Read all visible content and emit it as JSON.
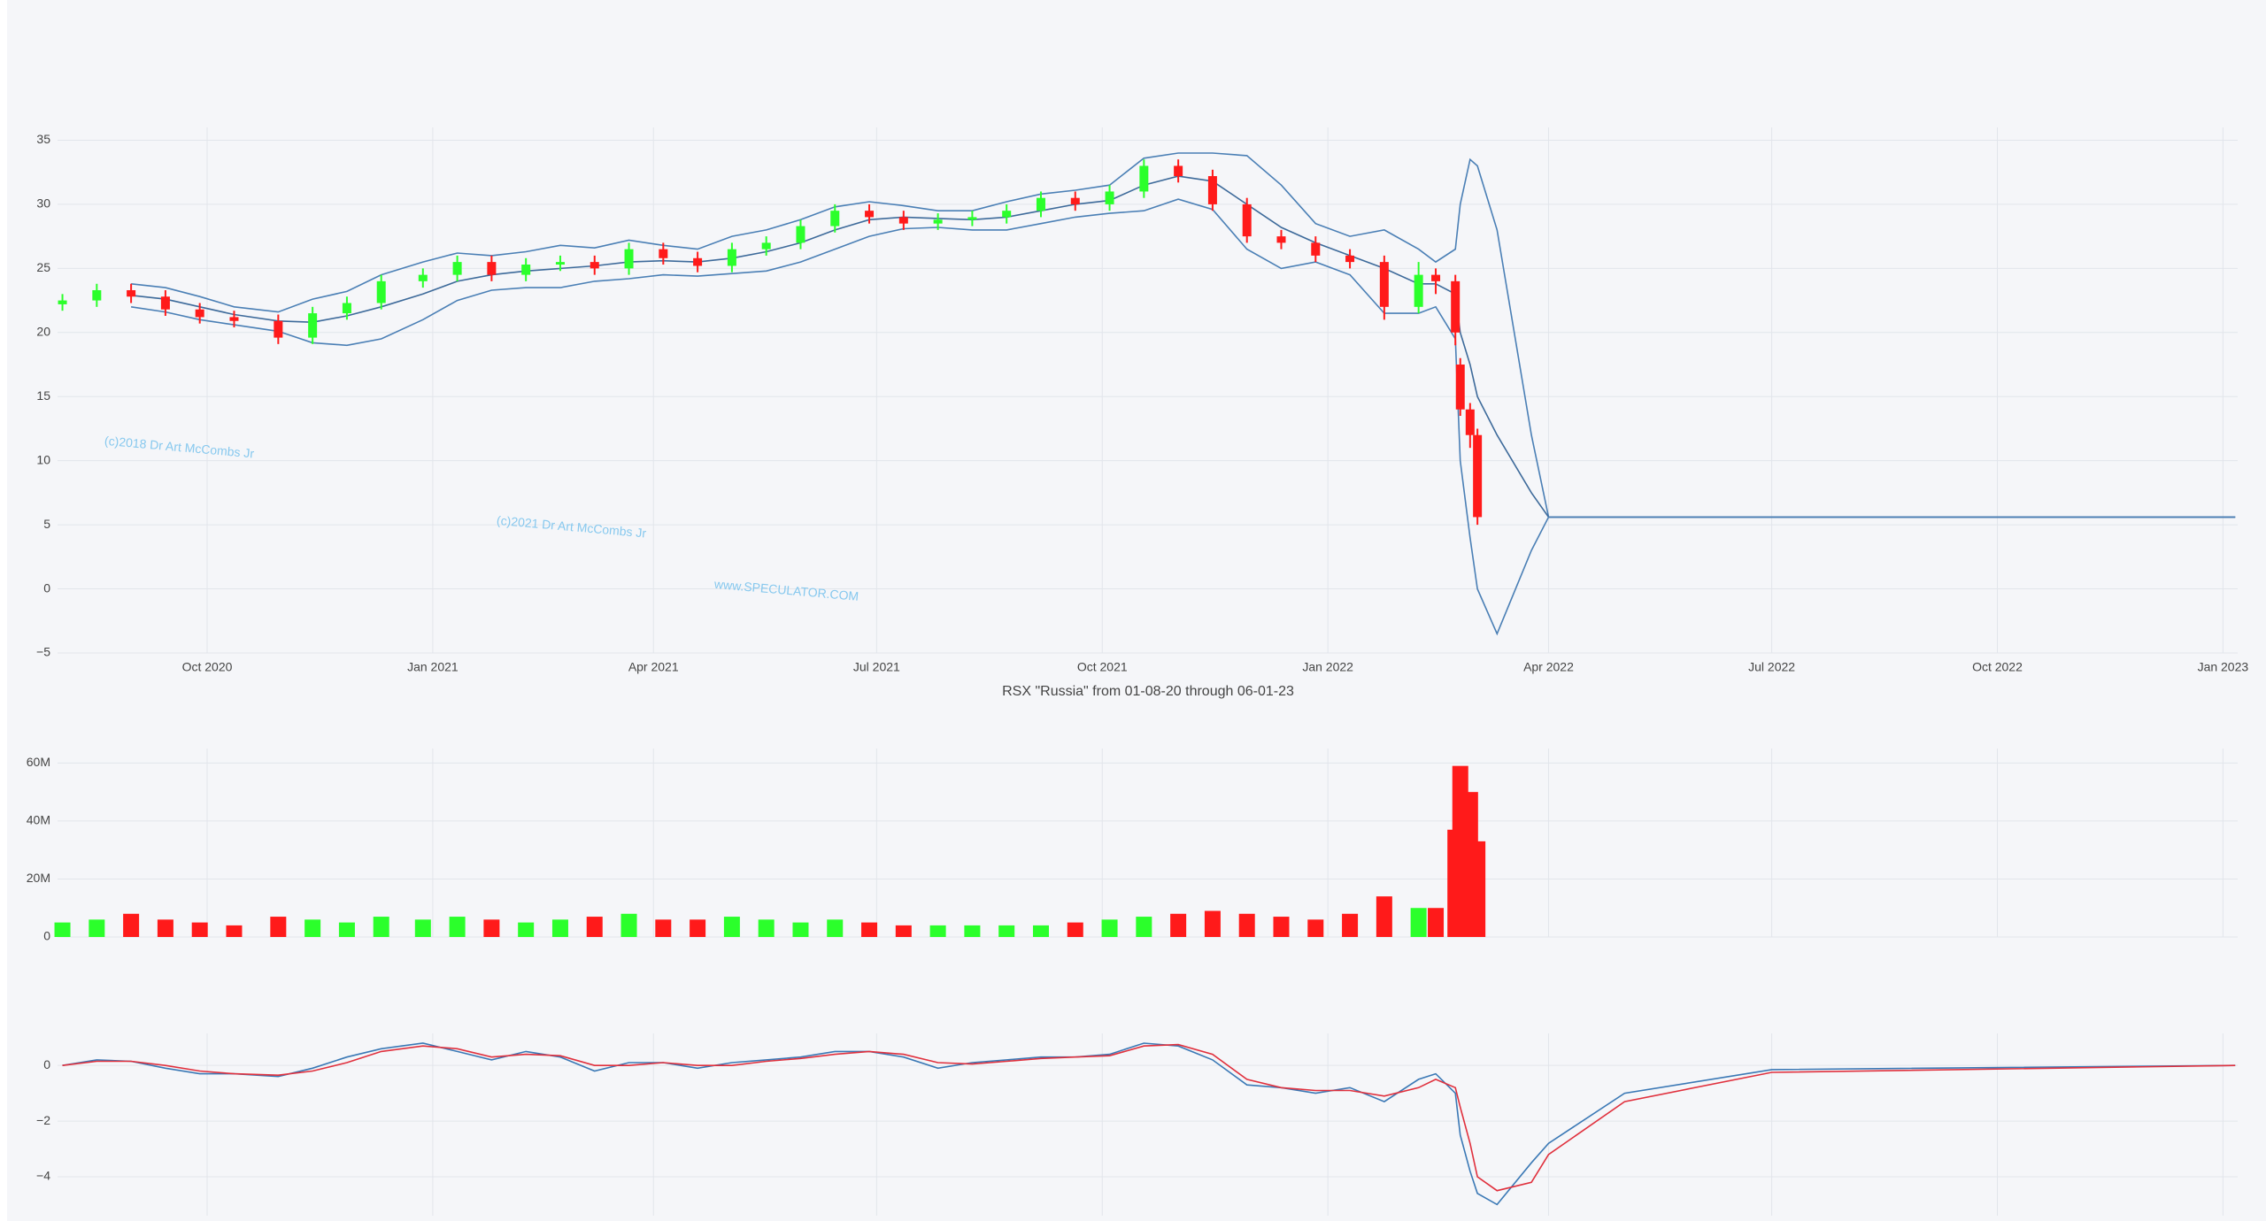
{
  "chart_data": [
    {
      "type": "candlestick",
      "title": "RSX \"Russia\" from 01-08-20 through 06-01-23",
      "annotations": [
        "(c)2018 Dr Art McCombs Jr",
        "(c)2021 Dr Art McCombs Jr",
        "www.SPECULATOR.COM"
      ],
      "x": [
        "2020-08-03",
        "2020-08-17",
        "2020-08-31",
        "2020-09-14",
        "2020-09-28",
        "2020-10-12",
        "2020-10-30",
        "2020-11-13",
        "2020-11-27",
        "2020-12-11",
        "2020-12-28",
        "2021-01-11",
        "2021-01-25",
        "2021-02-08",
        "2021-02-22",
        "2021-03-08",
        "2021-03-22",
        "2021-04-05",
        "2021-04-19",
        "2021-05-03",
        "2021-05-17",
        "2021-05-31",
        "2021-06-14",
        "2021-06-28",
        "2021-07-12",
        "2021-07-26",
        "2021-08-09",
        "2021-08-23",
        "2021-09-06",
        "2021-09-20",
        "2021-10-04",
        "2021-10-18",
        "2021-11-01",
        "2021-11-15",
        "2021-11-29",
        "2021-12-13",
        "2021-12-27",
        "2022-01-10",
        "2022-01-24",
        "2022-02-07",
        "2022-02-14",
        "2022-02-22",
        "2022-02-24",
        "2022-02-28",
        "2022-03-03",
        "2022-03-11",
        "2022-03-25",
        "2022-04-01",
        "2022-05-02",
        "2022-07-01",
        "2023-01-06"
      ],
      "open": [
        22.2,
        22.5,
        23.3,
        22.8,
        21.8,
        21.2,
        20.9,
        19.6,
        21.5,
        22.3,
        24.0,
        24.5,
        25.5,
        24.5,
        25.3,
        25.5,
        25.0,
        26.5,
        25.8,
        25.2,
        26.5,
        27.0,
        28.3,
        29.5,
        29.0,
        28.5,
        28.8,
        29.0,
        29.5,
        30.5,
        30.0,
        31.0,
        33.0,
        32.2,
        30.0,
        27.5,
        27.0,
        26.0,
        25.5,
        22.0,
        24.5,
        24.0,
        17.5,
        14.0,
        12.0,
        null,
        null,
        null,
        null,
        null,
        null
      ],
      "high": [
        23.0,
        23.8,
        23.8,
        23.3,
        22.3,
        21.7,
        21.4,
        22.0,
        22.8,
        24.5,
        25.0,
        26.0,
        26.0,
        25.8,
        26.0,
        26.0,
        27.0,
        27.0,
        26.3,
        27.0,
        27.5,
        28.8,
        30.0,
        30.0,
        29.5,
        29.3,
        29.5,
        30.0,
        31.0,
        31.0,
        31.5,
        33.5,
        33.5,
        32.7,
        30.5,
        28.0,
        27.5,
        26.5,
        26.0,
        25.5,
        25.0,
        24.5,
        18.0,
        14.5,
        12.5,
        null,
        null,
        null,
        null,
        null,
        null
      ],
      "low": [
        21.7,
        22.0,
        22.3,
        21.3,
        20.7,
        20.4,
        19.1,
        19.1,
        21.0,
        21.8,
        23.5,
        24.0,
        24.0,
        24.0,
        24.8,
        24.5,
        24.5,
        25.3,
        24.7,
        24.7,
        26.0,
        26.5,
        27.8,
        28.5,
        28.0,
        28.0,
        28.3,
        28.5,
        29.0,
        29.5,
        29.5,
        30.5,
        31.7,
        29.5,
        27.0,
        26.5,
        25.5,
        25.0,
        21.0,
        21.5,
        23.0,
        19.0,
        13.5,
        11.0,
        5.0,
        null,
        null,
        null,
        null,
        null,
        null
      ],
      "close": [
        22.5,
        23.3,
        22.8,
        21.8,
        21.2,
        20.9,
        19.6,
        21.5,
        22.3,
        24.0,
        24.5,
        25.5,
        24.5,
        25.3,
        25.5,
        25.0,
        26.5,
        25.8,
        25.2,
        26.5,
        27.0,
        28.3,
        29.5,
        29.0,
        28.5,
        28.8,
        29.0,
        29.5,
        30.5,
        30.0,
        31.0,
        33.0,
        32.2,
        30.0,
        27.5,
        27.0,
        26.0,
        25.5,
        22.0,
        24.5,
        24.0,
        20.0,
        14.0,
        12.0,
        5.6,
        null,
        null,
        null,
        null,
        null,
        null
      ],
      "increasing_color": "#2bff2b",
      "decreasing_color": "#ff1a1a",
      "series": [
        {
          "color": "#4a7fb5",
          "values": [
            null,
            null,
            23.8,
            23.5,
            22.8,
            22.0,
            21.6,
            22.6,
            23.2,
            24.5,
            25.5,
            26.2,
            26.0,
            26.3,
            26.8,
            26.6,
            27.2,
            26.8,
            26.5,
            27.5,
            28.0,
            28.8,
            29.8,
            30.2,
            29.9,
            29.5,
            29.5,
            30.2,
            30.8,
            31.1,
            31.5,
            33.6,
            34.0,
            34.0,
            33.8,
            31.5,
            28.5,
            27.5,
            28.0,
            26.5,
            25.5,
            26.5,
            30.0,
            33.5,
            33.0,
            28.0,
            12.0,
            5.6,
            5.6,
            5.6,
            5.6
          ]
        },
        {
          "color": "#3d6a9a",
          "values": [
            null,
            null,
            22.9,
            22.6,
            22.0,
            21.4,
            20.9,
            20.8,
            21.3,
            22.0,
            23.0,
            24.0,
            24.5,
            24.8,
            25.0,
            25.2,
            25.5,
            25.6,
            25.5,
            25.8,
            26.3,
            27.0,
            28.0,
            28.8,
            29.0,
            28.9,
            28.8,
            29.0,
            29.5,
            30.0,
            30.3,
            31.5,
            32.2,
            31.8,
            30.0,
            28.2,
            27.0,
            26.0,
            25.0,
            23.8,
            23.8,
            23.0,
            20.0,
            17.5,
            15.0,
            12.0,
            7.5,
            5.6,
            5.6,
            5.6,
            5.6
          ]
        },
        {
          "color": "#4a7fb5",
          "values": [
            null,
            null,
            22.0,
            21.6,
            21.0,
            20.6,
            20.1,
            19.2,
            19.0,
            19.5,
            21.0,
            22.5,
            23.3,
            23.5,
            23.5,
            24.0,
            24.2,
            24.5,
            24.4,
            24.6,
            24.8,
            25.5,
            26.5,
            27.5,
            28.1,
            28.2,
            28.0,
            28.0,
            28.5,
            29.0,
            29.3,
            29.5,
            30.4,
            29.6,
            26.5,
            25.0,
            25.5,
            24.5,
            21.5,
            21.5,
            22.0,
            19.5,
            10.0,
            4.0,
            0.0,
            -3.5,
            3.0,
            5.6,
            5.6,
            5.6,
            5.6
          ]
        }
      ],
      "xlim": [
        "2020-08-01",
        "2023-01-07"
      ],
      "xticks": [
        {
          "value": "2020-10-01",
          "label": "Oct 2020"
        },
        {
          "value": "2021-01-01",
          "label": "Jan 2021"
        },
        {
          "value": "2021-04-01",
          "label": "Apr 2021"
        },
        {
          "value": "2021-07-01",
          "label": "Jul 2021"
        },
        {
          "value": "2021-10-01",
          "label": "Oct 2021"
        },
        {
          "value": "2022-01-01",
          "label": "Jan 2022"
        },
        {
          "value": "2022-04-01",
          "label": "Apr 2022"
        },
        {
          "value": "2022-07-01",
          "label": "Jul 2022"
        },
        {
          "value": "2022-10-01",
          "label": "Oct 2022"
        },
        {
          "value": "2023-01-01",
          "label": "Jan 2023"
        }
      ],
      "ylim": [
        -5,
        36
      ],
      "yticks": [
        35,
        30,
        25,
        20,
        15,
        10,
        5,
        0,
        {
          "value": -5,
          "label": "−5"
        }
      ],
      "grid": true
    },
    {
      "type": "bar",
      "x": [
        "2020-08-03",
        "2020-08-17",
        "2020-08-31",
        "2020-09-14",
        "2020-09-28",
        "2020-10-12",
        "2020-10-30",
        "2020-11-13",
        "2020-11-27",
        "2020-12-11",
        "2020-12-28",
        "2021-01-11",
        "2021-01-25",
        "2021-02-08",
        "2021-02-22",
        "2021-03-08",
        "2021-03-22",
        "2021-04-05",
        "2021-04-19",
        "2021-05-03",
        "2021-05-17",
        "2021-05-31",
        "2021-06-14",
        "2021-06-28",
        "2021-07-12",
        "2021-07-26",
        "2021-08-09",
        "2021-08-23",
        "2021-09-06",
        "2021-09-20",
        "2021-10-04",
        "2021-10-18",
        "2021-11-01",
        "2021-11-15",
        "2021-11-29",
        "2021-12-13",
        "2021-12-27",
        "2022-01-10",
        "2022-01-24",
        "2022-02-07",
        "2022-02-14",
        "2022-02-22",
        "2022-02-24",
        "2022-02-28",
        "2022-03-03",
        "2022-03-11",
        "2022-03-25",
        "2022-04-01",
        "2022-05-02",
        "2022-07-01",
        "2023-01-06"
      ],
      "values": [
        5000000,
        6000000,
        8000000,
        6000000,
        5000000,
        4000000,
        7000000,
        6000000,
        5000000,
        7000000,
        6000000,
        7000000,
        6000000,
        5000000,
        6000000,
        7000000,
        8000000,
        6000000,
        6000000,
        7000000,
        6000000,
        5000000,
        6000000,
        5000000,
        4000000,
        4000000,
        4000000,
        4000000,
        4000000,
        5000000,
        6000000,
        7000000,
        8000000,
        9000000,
        8000000,
        7000000,
        6000000,
        8000000,
        14000000,
        10000000,
        10000000,
        37000000,
        59000000,
        50000000,
        33000000,
        null,
        null,
        null,
        null,
        null,
        null
      ],
      "xlim": [
        "2020-08-01",
        "2023-01-07"
      ],
      "xticks": [
        "2020-10-01",
        "2021-01-01",
        "2021-04-01",
        "2021-07-01",
        "2021-10-01",
        "2022-01-01",
        "2022-04-01",
        "2022-07-01",
        "2022-10-01",
        "2023-01-01"
      ],
      "ylim": [
        0,
        65000000
      ],
      "yticks": [
        0,
        {
          "value": 20000000,
          "label": "20M"
        },
        {
          "value": 40000000,
          "label": "40M"
        },
        {
          "value": 60000000,
          "label": "60M"
        }
      ],
      "grid": true
    },
    {
      "type": "line",
      "x": [
        "2020-08-03",
        "2020-08-17",
        "2020-08-31",
        "2020-09-14",
        "2020-09-28",
        "2020-10-12",
        "2020-10-30",
        "2020-11-13",
        "2020-11-27",
        "2020-12-11",
        "2020-12-28",
        "2021-01-11",
        "2021-01-25",
        "2021-02-08",
        "2021-02-22",
        "2021-03-08",
        "2021-03-22",
        "2021-04-05",
        "2021-04-19",
        "2021-05-03",
        "2021-05-17",
        "2021-05-31",
        "2021-06-14",
        "2021-06-28",
        "2021-07-12",
        "2021-07-26",
        "2021-08-09",
        "2021-08-23",
        "2021-09-06",
        "2021-09-20",
        "2021-10-04",
        "2021-10-18",
        "2021-11-01",
        "2021-11-15",
        "2021-11-29",
        "2021-12-13",
        "2021-12-27",
        "2022-01-10",
        "2022-01-24",
        "2022-02-07",
        "2022-02-14",
        "2022-02-22",
        "2022-02-24",
        "2022-02-28",
        "2022-03-03",
        "2022-03-11",
        "2022-03-25",
        "2022-04-01",
        "2022-05-02",
        "2022-07-01",
        "2023-01-06"
      ],
      "series": [
        {
          "color": "#3a78b5",
          "values": [
            0,
            0.2,
            0.15,
            -0.1,
            -0.3,
            -0.3,
            -0.4,
            -0.1,
            0.3,
            0.6,
            0.8,
            0.5,
            0.2,
            0.5,
            0.3,
            -0.2,
            0.1,
            0.1,
            -0.1,
            0.1,
            0.2,
            0.3,
            0.5,
            0.5,
            0.3,
            -0.1,
            0.1,
            0.2,
            0.3,
            0.3,
            0.4,
            0.8,
            0.7,
            0.2,
            -0.7,
            -0.8,
            -1.0,
            -0.8,
            -1.3,
            -0.5,
            -0.3,
            -1.0,
            -2.5,
            -3.8,
            -4.6,
            -5.0,
            -3.5,
            -2.8,
            -1.0,
            -0.15,
            0
          ]
        },
        {
          "color": "#e0303d",
          "values": [
            0,
            0.15,
            0.15,
            0,
            -0.2,
            -0.3,
            -0.35,
            -0.2,
            0.1,
            0.5,
            0.7,
            0.6,
            0.3,
            0.4,
            0.35,
            0,
            0,
            0.1,
            0,
            0,
            0.15,
            0.25,
            0.4,
            0.5,
            0.4,
            0.1,
            0.05,
            0.15,
            0.25,
            0.3,
            0.35,
            0.7,
            0.75,
            0.4,
            -0.5,
            -0.8,
            -0.9,
            -0.9,
            -1.1,
            -0.8,
            -0.5,
            -0.8,
            -1.5,
            -2.8,
            -4.0,
            -4.5,
            -4.2,
            -3.2,
            -1.3,
            -0.25,
            0
          ]
        }
      ],
      "xlim": [
        "2020-08-01",
        "2023-01-07"
      ],
      "xticks": [
        "2020-10-01",
        "2021-01-01",
        "2021-04-01",
        "2021-07-01",
        "2021-10-01",
        "2022-01-01",
        "2022-04-01",
        "2022-07-01",
        "2022-10-01",
        "2023-01-01"
      ],
      "ylim": [
        -5.4,
        1.15
      ],
      "yticks": [
        0,
        {
          "value": -2,
          "label": "−2"
        },
        {
          "value": -4,
          "label": "−4"
        }
      ],
      "grid": true
    }
  ]
}
